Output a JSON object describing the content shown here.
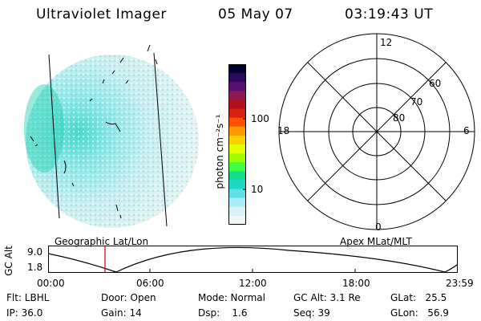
{
  "header": {
    "instrument": "Ultraviolet Imager",
    "date": "05 May 07",
    "time": "03:19:43 UT"
  },
  "colorbar": {
    "unit_label": "photon cm⁻²s⁻¹",
    "tick_100": "100",
    "tick_10": "10",
    "colors": [
      "#000030",
      "#2a0a5a",
      "#5a1070",
      "#8c1a50",
      "#b01020",
      "#d82010",
      "#ff5000",
      "#ff9800",
      "#ffd000",
      "#e8ff00",
      "#a0ff00",
      "#40ff40",
      "#10e090",
      "#20d8c8",
      "#60e0e8",
      "#a8eef4",
      "#d8f2f4",
      "#eef6f6"
    ]
  },
  "polar": {
    "label_12": "12",
    "label_0": "0",
    "label_18": "18",
    "label_6": "6",
    "label_60": "60",
    "label_70": "70",
    "label_80": "80"
  },
  "timeline": {
    "left_caption": "Geographic Lat/Lon",
    "right_caption": "Apex MLat/MLT",
    "axis_label": "GC Alt",
    "y_top": "9.0",
    "y_bottom": "1.8",
    "ticks": [
      "00:00",
      "06:00",
      "12:00",
      "18:00",
      "23:59"
    ],
    "marker_color": "#cc0000"
  },
  "info": {
    "flt": "Flt: LBHL",
    "ip": "IP: 36.0",
    "door": "Door: Open",
    "gain": "Gain: 14",
    "mode": "Mode: Normal",
    "dsp": "Dsp:    1.6",
    "gcalt": "GC Alt: 3.1 Re",
    "seq": "Seq: 39",
    "glat": "GLat:   25.5",
    "glon": "GLon:   56.9"
  }
}
